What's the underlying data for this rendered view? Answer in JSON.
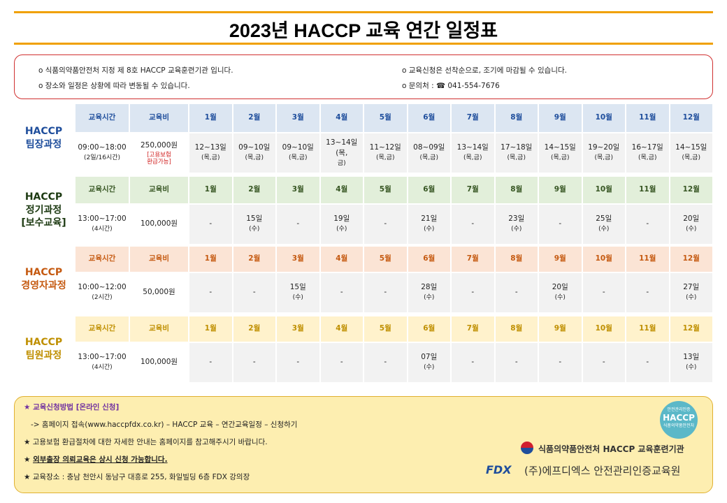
{
  "header": {
    "title": "2023년 HACCP 교육 연간 일정표"
  },
  "notices": [
    "o 식품의약품안전처 지정 제 8호 HACCP 교육훈련기관 입니다.",
    "o 장소와 일정은 상황에 따라 변동될 수 있습니다.",
    "o 교육신청은 선착순으로, 조기에 마감될 수 있습니다.",
    "o 문의처 : ☎ 041-554-7676"
  ],
  "table": {
    "columns": [
      "교육시간",
      "교육비",
      "1월",
      "2월",
      "3월",
      "4월",
      "5월",
      "6월",
      "7월",
      "8월",
      "9월",
      "10월",
      "11월",
      "12월"
    ]
  },
  "courses": [
    {
      "name": [
        "HACCP",
        "팀장과정"
      ],
      "time": [
        "09:00~18:00",
        "(2일/16시간)"
      ],
      "fee": "250,000원",
      "fee_note": [
        "[고용보험",
        "환급가능]"
      ],
      "months": [
        [
          "12~13일",
          "(목,금)"
        ],
        [
          "09~10일",
          "(목,금)"
        ],
        [
          "09~10일",
          "(목,금)"
        ],
        [
          "13~14일(목,",
          "금)"
        ],
        [
          "11~12일",
          "(목,금)"
        ],
        [
          "08~09일",
          "(목,금)"
        ],
        [
          "13~14일",
          "(목,금)"
        ],
        [
          "17~18일",
          "(목,금)"
        ],
        [
          "14~15일",
          "(목,금)"
        ],
        [
          "19~20일",
          "(목,금)"
        ],
        [
          "16~17일",
          "(목,금)"
        ],
        [
          "14~15일",
          "(목,금)"
        ]
      ]
    },
    {
      "name": [
        "HACCP",
        "정기과정",
        "[보수교육]"
      ],
      "time": [
        "13:00~17:00",
        "(4시간)"
      ],
      "fee": "100,000원",
      "months": [
        [
          "-"
        ],
        [
          "15일",
          "(수)"
        ],
        [
          "-"
        ],
        [
          "19일",
          "(수)"
        ],
        [
          "-"
        ],
        [
          "21일",
          "(수)"
        ],
        [
          "-"
        ],
        [
          "23일",
          "(수)"
        ],
        [
          "-"
        ],
        [
          "25일",
          "(수)"
        ],
        [
          "-"
        ],
        [
          "20일",
          "(수)"
        ]
      ]
    },
    {
      "name": [
        "HACCP",
        "경영자과정"
      ],
      "time": [
        "10:00~12:00",
        "(2시간)"
      ],
      "fee": "50,000원",
      "months": [
        [
          "-"
        ],
        [
          "-"
        ],
        [
          "15일",
          "(수)"
        ],
        [
          "-"
        ],
        [
          "-"
        ],
        [
          "28일",
          "(수)"
        ],
        [
          "-"
        ],
        [
          "-"
        ],
        [
          "20일",
          "(수)"
        ],
        [
          "-"
        ],
        [
          "-"
        ],
        [
          "27일",
          "(수)"
        ]
      ]
    },
    {
      "name": [
        "HACCP",
        "팀원과정"
      ],
      "time": [
        "13:00~17:00",
        "(4시간)"
      ],
      "fee": "100,000원",
      "months": [
        [
          "-"
        ],
        [
          "-"
        ],
        [
          "-"
        ],
        [
          "-"
        ],
        [
          "-"
        ],
        [
          "07일",
          "(수)"
        ],
        [
          "-"
        ],
        [
          "-"
        ],
        [
          "-"
        ],
        [
          "-"
        ],
        [
          "-"
        ],
        [
          "13일",
          "(수)"
        ]
      ]
    }
  ],
  "footer": {
    "items": [
      "교육신청방법 [온라인 신청]",
      "-> 홈페이지 접속(www.haccpfdx.co.kr) – HACCP 교육 – 연간교육일정 – 신청하기",
      "고용보험 환급절차에 대한 자세한 안내는 홈페이지를 참고해주시기 바랍니다.",
      "외부출장 의뢰교육은 상시 신청 가능합니다.",
      "교육장소 : 충남 천안시 동남구 대흥로 255, 화일빌딩 6층 FDX 강의장"
    ]
  },
  "logos": {
    "badge_top": "안전관리인증",
    "badge_main": "HACCP",
    "badge_bottom": "식품의약품안전처",
    "agency": "식품의약품안전처 HACCP 교육훈련기관",
    "fdx": "FDX",
    "company": "(주)에프디엑스 안전관리인증교육원"
  }
}
